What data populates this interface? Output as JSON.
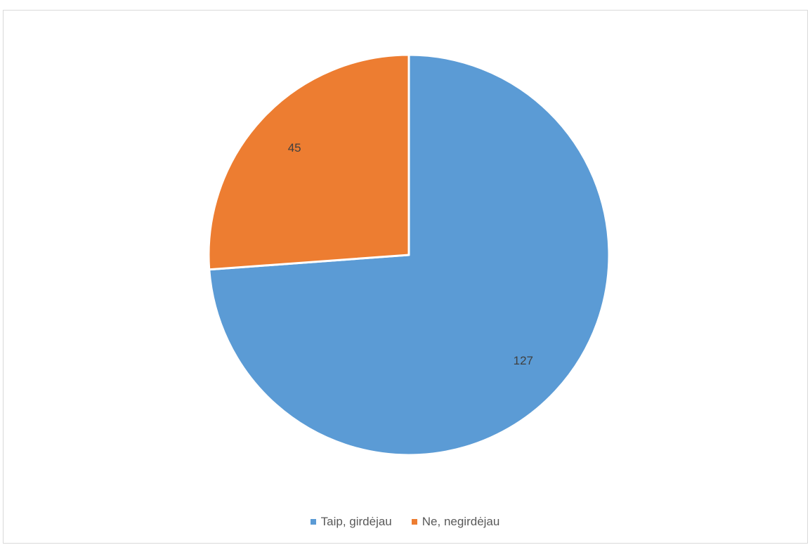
{
  "chart_data": {
    "type": "pie",
    "title": "",
    "start_angle_deg": 0,
    "direction": "clockwise",
    "legend_position": "bottom",
    "slices": [
      {
        "label": "Taip, girdėjau",
        "value": 127,
        "color": "#5b9bd5"
      },
      {
        "label": "Ne, negirdėjau",
        "value": 45,
        "color": "#ed7d31"
      }
    ]
  }
}
